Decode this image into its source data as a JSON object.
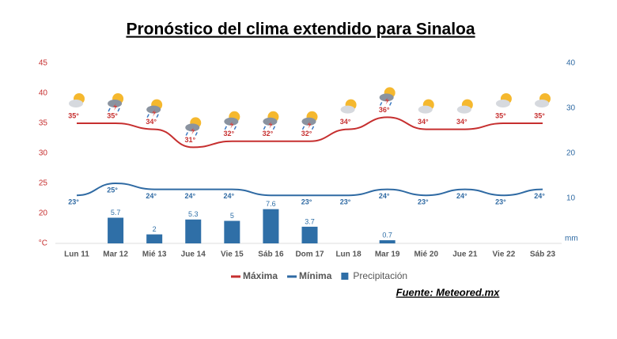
{
  "chart_data": {
    "type": "weather-combo",
    "title": "Pronóstico del clima extendido para Sinaloa",
    "source": "Fuente: Meteored.mx",
    "categories": [
      "Lun 11",
      "Mar 12",
      "Mié 13",
      "Jue 14",
      "Vie 15",
      "Sáb 16",
      "Dom 17",
      "Lun 18",
      "Mar 19",
      "Mié 20",
      "Jue 21",
      "Vie 22",
      "Sáb 23"
    ],
    "y_unit": "°C",
    "y2_unit": "mm",
    "ylim": [
      15,
      45
    ],
    "yticks": [
      20,
      25,
      30,
      35,
      40,
      45
    ],
    "y2lim": [
      0,
      40
    ],
    "y2ticks": [
      10,
      20,
      30,
      40
    ],
    "series": [
      {
        "name": "Máxima",
        "color": "#c62f2f",
        "kind": "line",
        "values": [
          35,
          35,
          34,
          31,
          32,
          32,
          32,
          34,
          36,
          34,
          34,
          35,
          35
        ],
        "value_labels": [
          "35°",
          "35°",
          "34°",
          "31°",
          "32°",
          "32°",
          "32°",
          "34°",
          "36°",
          "34°",
          "34°",
          "35°",
          "35°"
        ]
      },
      {
        "name": "Mínima",
        "color": "#2f6aa3",
        "kind": "line",
        "values": [
          23,
          25,
          24,
          24,
          24,
          23,
          23,
          23,
          24,
          23,
          24,
          23,
          24
        ],
        "value_labels": [
          "23°",
          "25°",
          "24°",
          "24°",
          "24°",
          null,
          "23°",
          "23°",
          "24°",
          "23°",
          "24°",
          "23°",
          "24°"
        ]
      },
      {
        "name": "Precipitación",
        "color": "#2f6fa7",
        "kind": "bar",
        "axis": "y2",
        "values": [
          null,
          5.7,
          2,
          5.3,
          5,
          7.6,
          3.7,
          null,
          0.7,
          null,
          null,
          null,
          null
        ]
      }
    ]
  }
}
